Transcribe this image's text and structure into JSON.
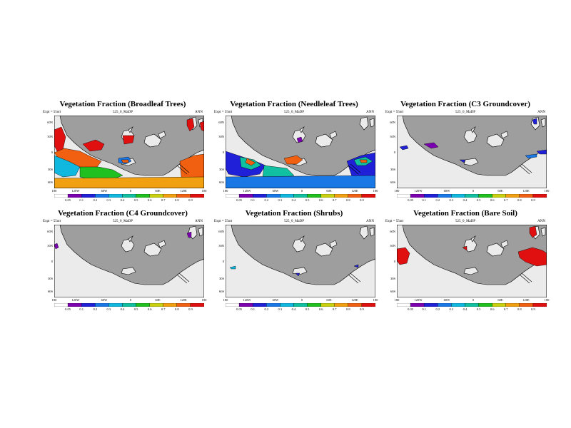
{
  "panels": [
    {
      "title": "Vegetation Fraction (Broadleaf Trees)",
      "left_label": "Expt = 55ort",
      "center_label": "525_0_MaDP",
      "right_label": "ANN",
      "variant": "broadleaf"
    },
    {
      "title": "Vegetation Fraction (Needleleaf Trees)",
      "left_label": "Expt = 55ort",
      "center_label": "525_0_MaDP",
      "right_label": "ANN",
      "variant": "needleleaf"
    },
    {
      "title": "Vegetation Fraction (C3 Groundcover)",
      "left_label": "Expt = 55ort",
      "center_label": "525_0_MaDP",
      "right_label": "ANN",
      "variant": "c3"
    },
    {
      "title": "Vegetation Fraction (C4 Groundcover)",
      "left_label": "Expt = 55ort",
      "center_label": "525_0_MaDP",
      "right_label": "ANN",
      "variant": "c4"
    },
    {
      "title": "Vegetation Fraction (Shrubs)",
      "left_label": "Expt = 55ort",
      "center_label": "525_0_MaDP",
      "right_label": "ANN",
      "variant": "shrubs"
    },
    {
      "title": "Vegetation Fraction (Bare Soil)",
      "left_label": "Expt = 55ort",
      "center_label": "525_0_MaDP",
      "right_label": "ANN",
      "variant": "bare"
    }
  ],
  "lat_labels": [
    "60N",
    "30N",
    "0",
    "30S",
    "60S"
  ],
  "lon_labels": [
    "180",
    "120W",
    "60W",
    "0",
    "60E",
    "120E",
    "180"
  ],
  "colorbar": {
    "ticks": [
      "0.05",
      "0.1",
      "0.2",
      "0.3",
      "0.4",
      "0.5",
      "0.6",
      "0.7",
      "0.8",
      "0.9"
    ],
    "colors": [
      "#ffffff",
      "#7a00b0",
      "#2020d8",
      "#1a78e6",
      "#10b8e0",
      "#10c0a0",
      "#20c020",
      "#c8d010",
      "#f0a010",
      "#f06010",
      "#e01010"
    ]
  },
  "colors": {
    "ocean": "#9e9e9e",
    "land": "#ebebeb"
  }
}
